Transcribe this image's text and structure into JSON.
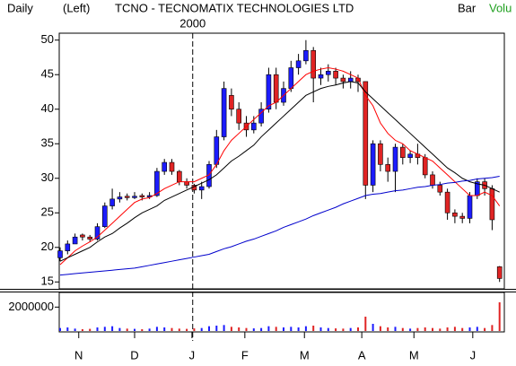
{
  "chart_data": {
    "type": "candlestick",
    "header": {
      "period": "Daily",
      "axis_side": "(Left)",
      "title": "TCNO - TECNOMATIX TECHNOLOGIES LTD",
      "style": "Bar",
      "volume": "Volu"
    },
    "annotations": [
      {
        "text": "2000",
        "x": 17.8
      }
    ],
    "open": [
      18.5,
      19.5,
      20.5,
      21.8,
      21.5,
      21.2,
      23,
      26,
      27,
      27.4,
      27.2,
      27.5,
      27.3,
      27.5,
      31,
      32.3,
      31,
      29.5,
      29,
      28.3,
      28.8,
      32,
      36,
      42,
      40,
      38,
      37,
      38,
      40,
      45,
      41,
      43,
      46,
      47,
      48.5,
      44.5,
      45,
      45.5,
      44.5,
      44,
      44.5,
      44,
      29,
      35,
      32,
      31,
      34.5,
      33,
      33.5,
      33,
      30.5,
      29,
      28,
      25,
      24.5,
      24.2,
      27.5,
      29.5,
      28.5,
      17.2
    ],
    "high": [
      20,
      21,
      22,
      22,
      21.8,
      23.5,
      26.5,
      28.5,
      28,
      27.8,
      28,
      27.8,
      28,
      31.5,
      32.8,
      32.8,
      31.2,
      30,
      29.2,
      29.5,
      32.5,
      37,
      44,
      43,
      41,
      39,
      39,
      41,
      46,
      46,
      44,
      47,
      48,
      50,
      49,
      46,
      46.5,
      46,
      45,
      45.5,
      45,
      44,
      35.5,
      35.5,
      33,
      35,
      35,
      34,
      35,
      33.5,
      31,
      29.5,
      28.5,
      25.5,
      25,
      28,
      30,
      30,
      29,
      17.3
    ],
    "low": [
      18,
      19,
      20.5,
      21,
      20.8,
      21,
      22.8,
      25.5,
      26.5,
      26.8,
      27,
      26.8,
      27,
      27.3,
      30.5,
      30.5,
      29,
      28.5,
      27.8,
      27,
      28.5,
      31.5,
      35.5,
      39,
      37,
      36,
      36.5,
      37.5,
      39.5,
      40,
      40.5,
      42.5,
      45,
      46.5,
      41,
      43.5,
      44,
      43.5,
      43,
      43,
      42.5,
      27,
      28,
      31,
      29.5,
      28,
      32,
      32.2,
      32,
      30,
      28.5,
      27.5,
      24,
      23.5,
      23.5,
      23.5,
      27,
      27.5,
      22.5,
      15
    ],
    "close": [
      19.5,
      20.5,
      21.5,
      21.5,
      21.2,
      23,
      26,
      27,
      27.3,
      27.2,
      27.4,
      27.3,
      27.5,
      31,
      32.3,
      31,
      29.5,
      29,
      28.3,
      28.8,
      32,
      36,
      43,
      40,
      38,
      37,
      38,
      40,
      45,
      41,
      43,
      46,
      47,
      48.5,
      44.5,
      45,
      45.5,
      44.5,
      44,
      44.5,
      44,
      29,
      35,
      32,
      31,
      34.5,
      33,
      33.5,
      33,
      30.5,
      29,
      28,
      25,
      24.5,
      24.2,
      27.5,
      29.5,
      28.5,
      24,
      15.5
    ],
    "volume": [
      250000,
      300000,
      200000,
      150000,
      180000,
      300000,
      350000,
      400000,
      250000,
      200000,
      180000,
      150000,
      200000,
      350000,
      300000,
      250000,
      200000,
      180000,
      220000,
      250000,
      400000,
      450000,
      500000,
      350000,
      300000,
      250000,
      220000,
      250000,
      400000,
      350000,
      300000,
      350000,
      300000,
      400000,
      450000,
      300000,
      250000,
      220000,
      200000,
      250000,
      300000,
      1200000,
      600000,
      400000,
      300000,
      350000,
      250000,
      200000,
      250000,
      300000,
      250000,
      200000,
      300000,
      350000,
      250000,
      300000,
      350000,
      250000,
      500000,
      2400000
    ],
    "up_color": "#1c1cff",
    "down_color": "#e02424",
    "moving_averages": [
      {
        "color": "#ff0000",
        "values": [
          17.5,
          18.5,
          19.5,
          20.2,
          20.8,
          21.5,
          22.5,
          23.5,
          24.5,
          25.5,
          26.5,
          27,
          27.2,
          27.8,
          28.5,
          29,
          29.5,
          29.5,
          29.5,
          30,
          30.5,
          32,
          34,
          35.5,
          36.5,
          37.5,
          38.5,
          39.5,
          40.5,
          41,
          42,
          43,
          44,
          45,
          45.5,
          45.8,
          46,
          45.8,
          45.5,
          45,
          44.5,
          42,
          40.5,
          38,
          36.5,
          35.5,
          35,
          34,
          33.5,
          33,
          32.5,
          31.5,
          30.5,
          29.5,
          28.5,
          27.5,
          27.5,
          28,
          27.5,
          26
        ]
      },
      {
        "color": "#000000",
        "values": [
          18,
          18.5,
          19,
          19.5,
          20,
          20.8,
          21.5,
          22,
          22.8,
          23.5,
          24.3,
          25,
          25.5,
          26,
          26.8,
          27.3,
          27.8,
          28.3,
          28.8,
          29.3,
          29.8,
          30.5,
          31.5,
          32.5,
          33.2,
          34,
          34.8,
          36,
          37,
          38,
          39,
          40,
          41,
          42,
          42.5,
          43,
          43.3,
          43.5,
          43.8,
          44,
          43.8,
          42.5,
          41.5,
          40.5,
          39.5,
          38.5,
          37.5,
          36.5,
          35.5,
          34.5,
          33.5,
          32.5,
          31.5,
          30.8,
          30,
          29.5,
          29.2,
          29,
          28.5,
          28
        ]
      },
      {
        "color": "#0000cc",
        "values": [
          16,
          16.1,
          16.2,
          16.3,
          16.4,
          16.5,
          16.6,
          16.7,
          16.8,
          16.9,
          17,
          17.2,
          17.4,
          17.6,
          17.8,
          18,
          18.2,
          18.4,
          18.6,
          18.8,
          19,
          19.4,
          19.8,
          20.1,
          20.5,
          20.9,
          21.2,
          21.6,
          22,
          22.4,
          22.9,
          23.3,
          23.7,
          24.1,
          24.6,
          25,
          25.4,
          25.8,
          26.3,
          26.7,
          27.1,
          27.5,
          27.7,
          27.8,
          28,
          28.2,
          28.3,
          28.5,
          28.7,
          28.8,
          29,
          29.1,
          29.3,
          29.4,
          29.6,
          29.7,
          29.9,
          30,
          30.1,
          30.3
        ]
      }
    ],
    "ylim": [
      14,
      51
    ],
    "yticks": [
      15,
      20,
      25,
      30,
      35,
      40,
      45,
      50
    ],
    "volume_ylim": [
      0,
      3150000
    ],
    "volume_yticks": [
      2000000
    ],
    "xticks": [
      {
        "value": 2.5,
        "label": "N"
      },
      {
        "value": 10,
        "label": "D"
      },
      {
        "value": 17.7,
        "label": "J"
      },
      {
        "value": 24.8,
        "label": "F"
      },
      {
        "value": 32.8,
        "label": "M"
      },
      {
        "value": 40.5,
        "label": "A"
      },
      {
        "value": 47.5,
        "label": "M"
      },
      {
        "value": 55.4,
        "label": "J"
      }
    ]
  }
}
